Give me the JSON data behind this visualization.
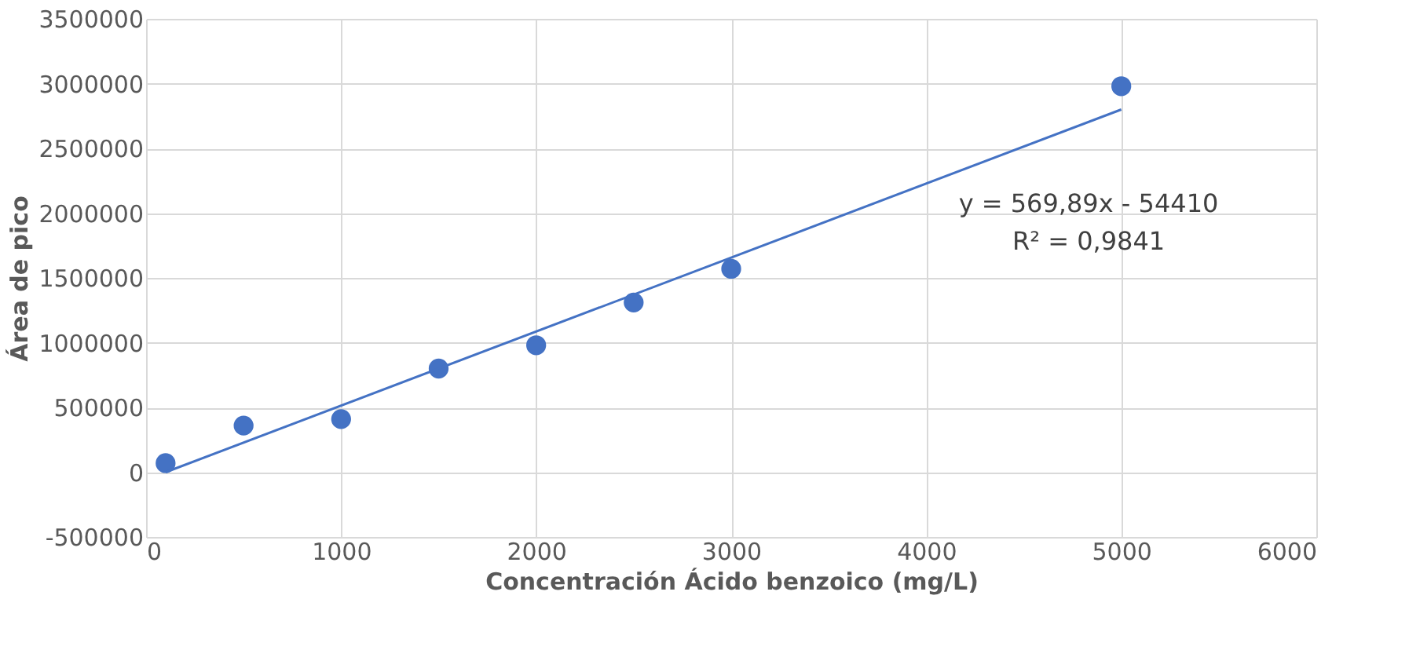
{
  "chart_data": {
    "type": "scatter",
    "xlabel": "Concentración Ácido benzoico (mg/L)",
    "ylabel": "Área de pico",
    "series": [
      {
        "color": "#4472c4",
        "marker": "circle",
        "x": [
          100,
          500,
          1000,
          1500,
          2000,
          2500,
          3000,
          5000
        ],
        "values": [
          70000,
          360000,
          410000,
          800000,
          980000,
          1310000,
          1570000,
          2980000
        ]
      },
      {
        "type": "line",
        "color": "#4472c4",
        "x": [
          100,
          5000
        ],
        "values": [
          0,
          2800000
        ]
      }
    ],
    "xlim": [
      0,
      6000
    ],
    "xticks": [
      0,
      1000,
      2000,
      3000,
      4000,
      5000,
      6000
    ],
    "ylim": [
      -500000,
      3500000
    ],
    "yticks": [
      -500000,
      0,
      500000,
      1000000,
      1500000,
      2000000,
      2500000,
      3000000,
      3500000
    ],
    "grid": true,
    "annotations": [
      "y = 569,89x - 54410",
      "R² = 0,9841"
    ]
  }
}
